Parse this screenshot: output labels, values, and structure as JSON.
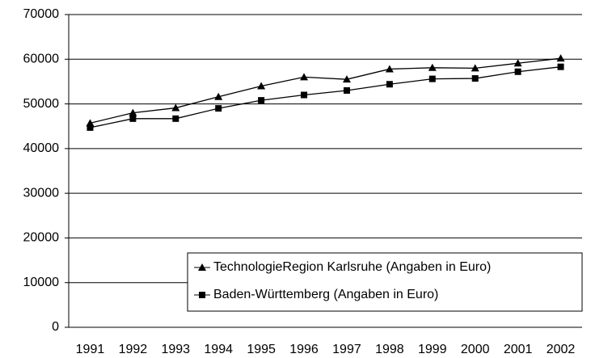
{
  "chart_data": {
    "type": "line",
    "categories": [
      "1991",
      "1992",
      "1993",
      "1994",
      "1995",
      "1996",
      "1997",
      "1998",
      "1999",
      "2000",
      "2001",
      "2002"
    ],
    "series": [
      {
        "name": "TechnologieRegion Karlsruhe (Angaben in Euro)",
        "color": "#000000",
        "marker": "triangle",
        "values": [
          45700,
          48000,
          49100,
          51600,
          54000,
          56000,
          55500,
          57800,
          58100,
          58000,
          59100,
          60200
        ]
      },
      {
        "name": "Baden-Württemberg (Angaben in Euro)",
        "color": "#000000",
        "marker": "square",
        "values": [
          44700,
          46700,
          46700,
          49000,
          50800,
          52000,
          53000,
          54400,
          55600,
          55700,
          57200,
          58300
        ]
      }
    ],
    "ylim": [
      0,
      70000
    ],
    "yticks": [
      0,
      10000,
      20000,
      30000,
      40000,
      50000,
      60000,
      70000
    ],
    "grid": true,
    "legend": "lower right"
  }
}
